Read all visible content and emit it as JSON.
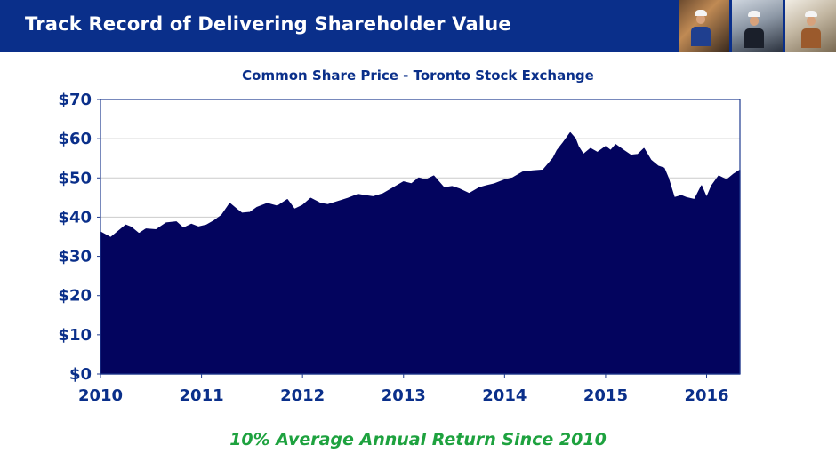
{
  "header": {
    "title": "Track Record of Delivering Shareholder Value"
  },
  "photos": [
    "worker-in-refinery-photo",
    "worker-with-pipes-photo",
    "workers-outdoor-photo"
  ],
  "colors": {
    "brand": "#0a2f8a",
    "area_fill": "#03045e",
    "accent_green": "#1ea23f",
    "grid": "#cccccc"
  },
  "chart_data": {
    "type": "area",
    "title": "Common Share Price - Toronto Stock Exchange",
    "xlabel": "",
    "ylabel": "",
    "xlim": [
      2010,
      2016.33
    ],
    "ylim": [
      0,
      70
    ],
    "y_ticks": [
      0,
      10,
      20,
      30,
      40,
      50,
      60,
      70
    ],
    "y_tick_labels": [
      "$0",
      "$10",
      "$20",
      "$30",
      "$40",
      "$50",
      "$60",
      "$70"
    ],
    "x_ticks": [
      2010,
      2011,
      2012,
      2013,
      2014,
      2015,
      2016
    ],
    "x_tick_labels": [
      "2010",
      "2011",
      "2012",
      "2013",
      "2014",
      "2015",
      "2016"
    ],
    "grid": true,
    "series": [
      {
        "name": "Common Share Price",
        "x": [
          2010.0,
          2010.05,
          2010.1,
          2010.18,
          2010.25,
          2010.3,
          2010.38,
          2010.45,
          2010.55,
          2010.65,
          2010.75,
          2010.82,
          2010.9,
          2010.97,
          2011.05,
          2011.12,
          2011.2,
          2011.28,
          2011.35,
          2011.4,
          2011.48,
          2011.55,
          2011.65,
          2011.75,
          2011.85,
          2011.92,
          2012.0,
          2012.08,
          2012.18,
          2012.25,
          2012.35,
          2012.45,
          2012.55,
          2012.62,
          2012.7,
          2012.8,
          2012.9,
          2013.0,
          2013.08,
          2013.15,
          2013.22,
          2013.3,
          2013.4,
          2013.48,
          2013.55,
          2013.65,
          2013.75,
          2013.82,
          2013.9,
          2014.0,
          2014.08,
          2014.18,
          2014.28,
          2014.38,
          2014.48,
          2014.52,
          2014.58,
          2014.65,
          2014.7,
          2014.73,
          2014.78,
          2014.85,
          2014.92,
          2015.0,
          2015.05,
          2015.1,
          2015.18,
          2015.25,
          2015.32,
          2015.38,
          2015.45,
          2015.52,
          2015.58,
          2015.62,
          2015.68,
          2015.75,
          2015.8,
          2015.88,
          2015.95,
          2016.0,
          2016.05,
          2016.12,
          2016.2,
          2016.27,
          2016.33
        ],
        "values": [
          36.2,
          35.5,
          34.8,
          36.5,
          38.0,
          37.5,
          35.8,
          37.0,
          36.8,
          38.5,
          38.8,
          37.2,
          38.2,
          37.5,
          38.0,
          39.0,
          40.5,
          43.5,
          42.0,
          41.0,
          41.2,
          42.5,
          43.5,
          42.8,
          44.5,
          42.0,
          43.0,
          44.8,
          43.5,
          43.2,
          44.0,
          44.8,
          45.8,
          45.5,
          45.2,
          46.0,
          47.5,
          49.0,
          48.5,
          50.0,
          49.5,
          50.5,
          47.5,
          47.8,
          47.2,
          46.0,
          47.5,
          48.0,
          48.5,
          49.5,
          50.0,
          51.5,
          51.8,
          52.0,
          55.0,
          57.0,
          59.0,
          61.5,
          60.0,
          58.0,
          56.0,
          57.5,
          56.5,
          58.0,
          57.0,
          58.5,
          57.0,
          55.8,
          56.0,
          57.5,
          54.5,
          53.0,
          52.5,
          50.0,
          45.0,
          45.5,
          45.0,
          44.5,
          48.0,
          45.0,
          48.0,
          50.5,
          49.5,
          51.0,
          52.0
        ]
      }
    ]
  },
  "footer": {
    "text": "10% Average Annual Return Since 2010"
  }
}
